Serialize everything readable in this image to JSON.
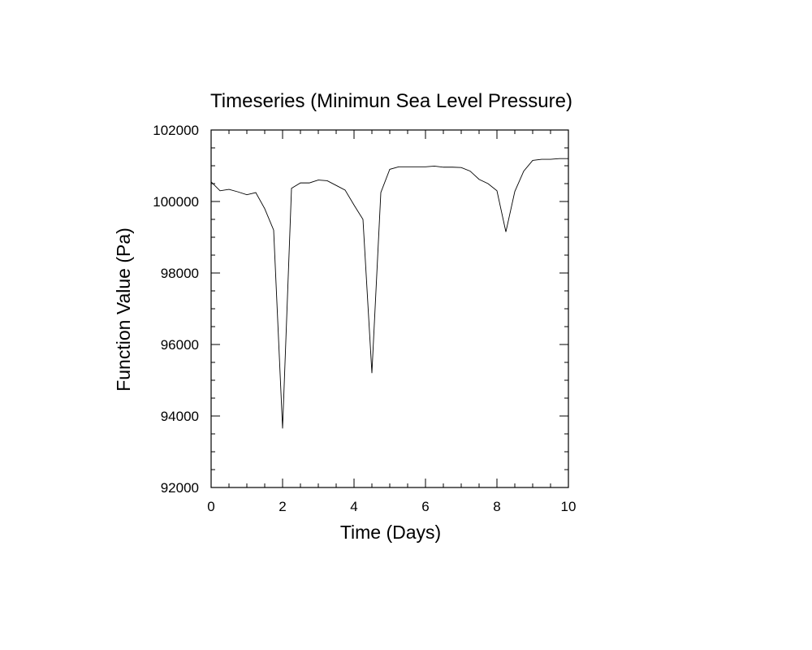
{
  "chart_data": {
    "type": "line",
    "title": "Timeseries (Minimun Sea Level Pressure)",
    "xlabel": "Time (Days)",
    "ylabel": "Function Value (Pa)",
    "xlim": [
      0,
      10
    ],
    "ylim": [
      92000,
      102000
    ],
    "x_ticks": [
      "0",
      "2",
      "4",
      "6",
      "8",
      "10"
    ],
    "y_ticks": [
      "92000",
      "94000",
      "96000",
      "98000",
      "100000",
      "102000"
    ],
    "grid": false,
    "line_color": "#000000",
    "series": [
      {
        "x": [
          0,
          0.25,
          0.5,
          0.75,
          1.0,
          1.25,
          1.5,
          1.75,
          2.0,
          2.25,
          2.5,
          2.75,
          3.0,
          3.25,
          3.5,
          3.75,
          4.0,
          4.25,
          4.5,
          4.75,
          5.0,
          5.25,
          5.5,
          5.75,
          6.0,
          6.25,
          6.5,
          6.75,
          7.0,
          7.25,
          7.5,
          7.75,
          8.0,
          8.25,
          8.5,
          8.75,
          9.0,
          9.25,
          9.5,
          9.75,
          10.0
        ],
        "y": [
          100550,
          100300,
          100340,
          100270,
          100190,
          100250,
          99800,
          99200,
          93650,
          100370,
          100520,
          100520,
          100600,
          100580,
          100450,
          100320,
          99900,
          99500,
          95200,
          100250,
          100900,
          100970,
          100970,
          100970,
          100970,
          100990,
          100960,
          100960,
          100950,
          100850,
          100620,
          100500,
          100300,
          99150,
          100280,
          100850,
          101150,
          101180,
          101180,
          101200,
          101200
        ]
      }
    ]
  }
}
